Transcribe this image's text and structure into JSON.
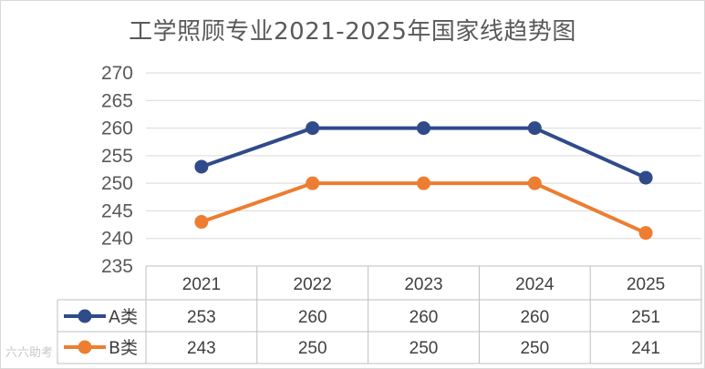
{
  "title": "工学照顾专业2021-2025年国家线趋势图",
  "watermark": "六六助考",
  "colors": {
    "series_a": "#2f4b8a",
    "series_b": "#ed7d31",
    "grid": "#d9d9d9",
    "table": "#bfbfbf"
  },
  "chart_data": {
    "type": "line",
    "title": "工学照顾专业2021-2025年国家线趋势图",
    "categories": [
      "2021",
      "2022",
      "2023",
      "2024",
      "2025"
    ],
    "y_ticks": [
      "235",
      "240",
      "245",
      "250",
      "255",
      "260",
      "265",
      "270"
    ],
    "ylim": [
      235,
      270
    ],
    "grid": true,
    "legend_position": "data-table-left",
    "series": [
      {
        "name": "A类",
        "values": [
          253,
          260,
          260,
          260,
          251
        ],
        "color": "#2f4b8a"
      },
      {
        "name": "B类",
        "values": [
          243,
          250,
          250,
          250,
          241
        ],
        "color": "#ed7d31"
      }
    ]
  }
}
